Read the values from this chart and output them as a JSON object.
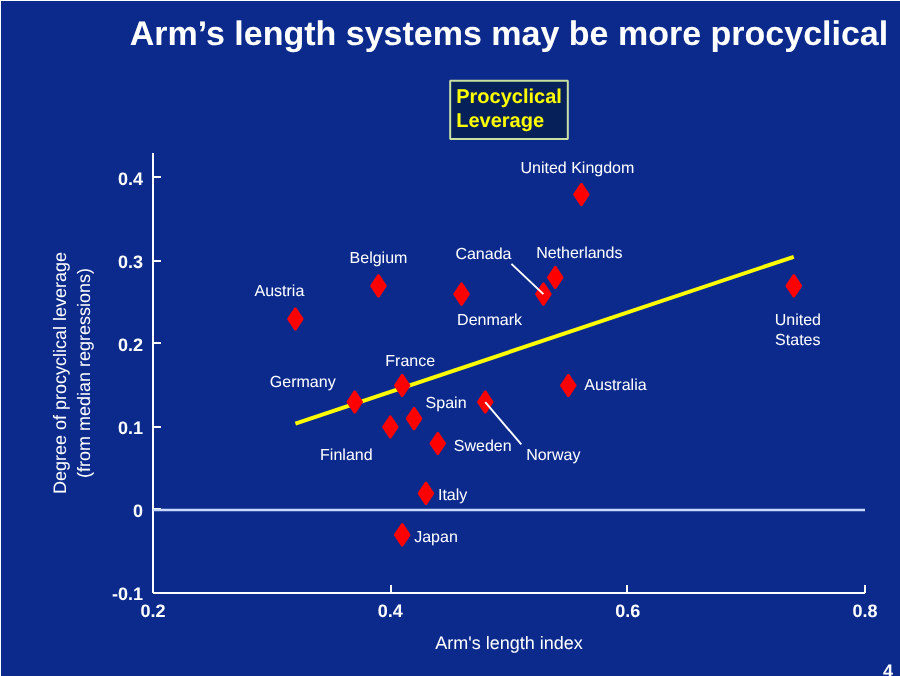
{
  "chart_data": {
    "type": "scatter",
    "title": "Arm’s length systems may be more procyclical",
    "subtitle": "Procyclical\nLeverage",
    "xlabel": "Arm's length index",
    "ylabel": "Degree of procyclical leverage\n(from median regressions)",
    "series": [
      {
        "color": "#ff0000",
        "marker": "diamond",
        "x": [
          0.561,
          0.539,
          0.529,
          0.39,
          0.46,
          0.32,
          0.74,
          0.41,
          0.37,
          0.42,
          0.4,
          0.44,
          0.48,
          0.55,
          0.43,
          0.41
        ],
        "values": [
          0.38,
          0.28,
          0.26,
          0.27,
          0.26,
          0.23,
          0.27,
          0.15,
          0.13,
          0.11,
          0.1,
          0.08,
          0.13,
          0.15,
          0.02,
          -0.03
        ]
      },
      {
        "type": "line",
        "color": "#ffff00",
        "x": [
          0.32,
          0.74
        ],
        "values": [
          0.104,
          0.305
        ]
      }
    ],
    "annotations": [
      {
        "text": "United Kingdom",
        "x": 0.561,
        "y": 0.38
      },
      {
        "text": "Netherlands",
        "x": 0.539,
        "y": 0.28
      },
      {
        "text": "Canada",
        "x": 0.529,
        "y": 0.26
      },
      {
        "text": "Belgium",
        "x": 0.39,
        "y": 0.27
      },
      {
        "text": "Denmark",
        "x": 0.46,
        "y": 0.26
      },
      {
        "text": "Austria",
        "x": 0.32,
        "y": 0.23
      },
      {
        "text": "United\nStates",
        "x": 0.74,
        "y": 0.27
      },
      {
        "text": "France",
        "x": 0.41,
        "y": 0.15
      },
      {
        "text": "Germany",
        "x": 0.37,
        "y": 0.13
      },
      {
        "text": "Spain",
        "x": 0.42,
        "y": 0.11
      },
      {
        "text": "Finland",
        "x": 0.4,
        "y": 0.1
      },
      {
        "text": "Sweden",
        "x": 0.44,
        "y": 0.08
      },
      {
        "text": "Norway",
        "x": 0.48,
        "y": 0.13
      },
      {
        "text": "Australia",
        "x": 0.55,
        "y": 0.15
      },
      {
        "text": "Italy",
        "x": 0.43,
        "y": 0.02
      },
      {
        "text": "Japan",
        "x": 0.41,
        "y": -0.03
      },
      "4"
    ],
    "ref_lines": [
      {
        "axis": "y",
        "value": 0,
        "color": "#c8d8ff"
      }
    ],
    "xlim": [
      0.2,
      0.8
    ],
    "ylim": [
      -0.1,
      0.43
    ],
    "xticks": [
      0.2,
      0.4,
      0.6,
      0.8
    ],
    "yticks": [
      -0.1,
      0,
      0.1,
      0.2,
      0.3,
      0.4
    ],
    "grid": false
  }
}
